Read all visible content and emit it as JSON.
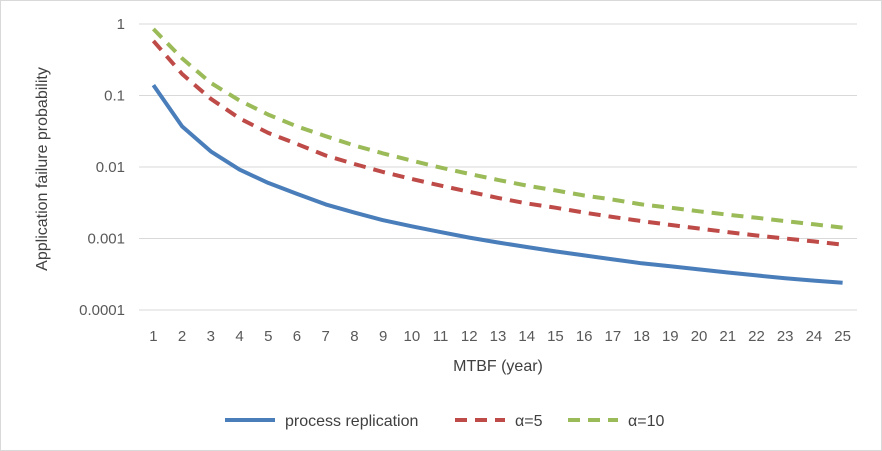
{
  "chart_data": {
    "type": "line",
    "xlabel": "MTBF (year)",
    "ylabel": "Application failure probability",
    "yscale": "log",
    "ylim": [
      0.0001,
      1
    ],
    "y_ticks": [
      "1",
      "0.1",
      "0.01",
      "0.001",
      "0.0001"
    ],
    "x": [
      1,
      2,
      3,
      4,
      5,
      6,
      7,
      8,
      9,
      10,
      11,
      12,
      13,
      14,
      15,
      16,
      17,
      18,
      19,
      20,
      21,
      22,
      23,
      24,
      25
    ],
    "grid": "horizontal",
    "legend_position": "bottom",
    "series": [
      {
        "name": "process replication",
        "style": "solid",
        "color": "#4a7ebb",
        "values": [
          0.14,
          0.037,
          0.0165,
          0.0092,
          0.006,
          0.0042,
          0.003,
          0.0023,
          0.0018,
          0.00148,
          0.00123,
          0.00103,
          0.00088,
          0.00076,
          0.00066,
          0.00058,
          0.00051,
          0.00045,
          0.00041,
          0.00037,
          0.000335,
          0.000305,
          0.000278,
          0.000258,
          0.00024
        ]
      },
      {
        "name": "α=5",
        "style": "dashed",
        "color": "#be4b48",
        "values": [
          0.58,
          0.2,
          0.09,
          0.048,
          0.03,
          0.021,
          0.0145,
          0.011,
          0.0085,
          0.0068,
          0.0055,
          0.0045,
          0.0037,
          0.0031,
          0.0027,
          0.0023,
          0.002,
          0.00175,
          0.00155,
          0.00138,
          0.00123,
          0.0011,
          0.001,
          0.00091,
          0.00082
        ]
      },
      {
        "name": "α=10",
        "style": "dashed",
        "color": "#9bbb59",
        "values": [
          0.85,
          0.33,
          0.15,
          0.085,
          0.054,
          0.037,
          0.027,
          0.02,
          0.0155,
          0.0123,
          0.0098,
          0.008,
          0.0066,
          0.0055,
          0.0047,
          0.004,
          0.0035,
          0.003,
          0.0027,
          0.0024,
          0.00215,
          0.00195,
          0.00175,
          0.00158,
          0.00142
        ]
      }
    ]
  }
}
